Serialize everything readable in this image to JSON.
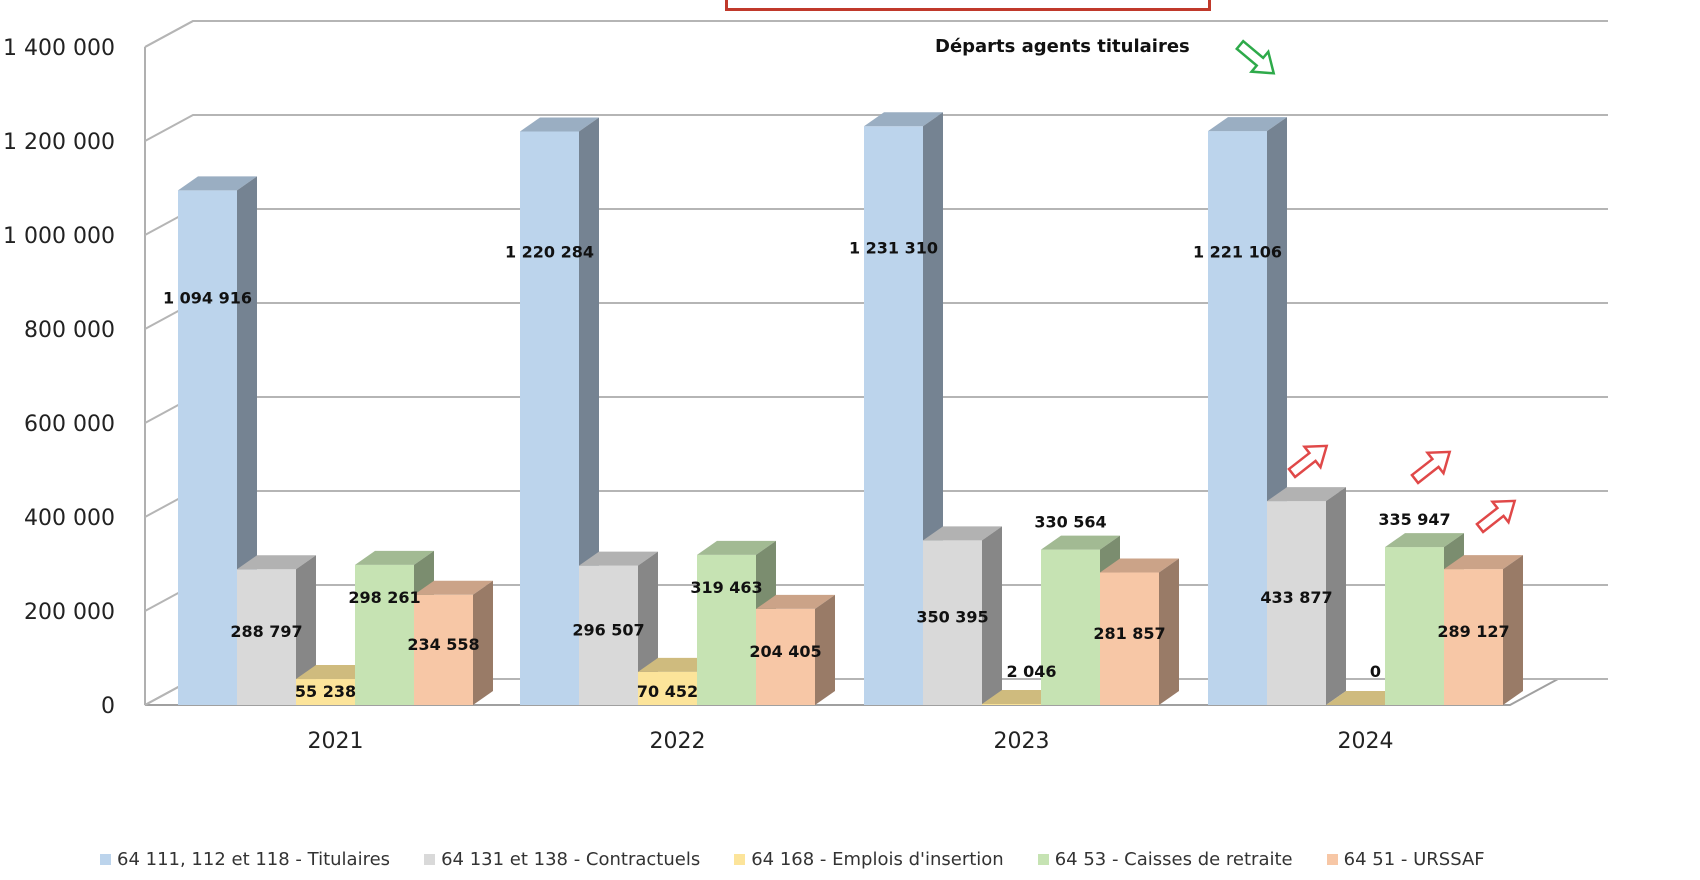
{
  "chart_data": {
    "type": "bar",
    "categories": [
      "2021",
      "2022",
      "2023",
      "2024"
    ],
    "ylim": [
      0,
      1400000
    ],
    "yticks": [
      0,
      200000,
      400000,
      600000,
      800000,
      1000000,
      1200000,
      1400000
    ],
    "ytick_labels": [
      "0",
      "200 000",
      "400 000",
      "600 000",
      "800 000",
      "1 000 000",
      "1 200 000",
      "1 400 000"
    ],
    "grid": true,
    "legend_position": "bottom",
    "style": "3d-clustered-column",
    "series": [
      {
        "name": "64 111, 112 et 118 - Titulaires",
        "color": "#bcd4ec",
        "values": [
          1094916,
          1220284,
          1231310,
          1221106
        ],
        "labels": [
          "1 094 916",
          "1 220 284",
          "1 231 310",
          "1 221 106"
        ]
      },
      {
        "name": "64 131 et 138 - Contractuels",
        "color": "#d9d9d9",
        "values": [
          288797,
          296507,
          350395,
          433877
        ],
        "labels": [
          "288 797",
          "296 507",
          "350 395",
          "433 877"
        ]
      },
      {
        "name": "64 168 - Emplois d'insertion",
        "color": "#fce49a",
        "values": [
          55238,
          70452,
          2046,
          0
        ],
        "labels": [
          "55 238",
          "70 452",
          "2 046",
          "0"
        ]
      },
      {
        "name": "64 53 - Caisses de retraite",
        "color": "#c6e3b3",
        "values": [
          298261,
          319463,
          330564,
          335947
        ],
        "labels": [
          "298 261",
          "319 463",
          "330 564",
          "335 947"
        ]
      },
      {
        "name": "64 51 - URSSAF",
        "color": "#f7c7a6",
        "values": [
          234558,
          204405,
          281857,
          289127
        ],
        "labels": [
          "234 558",
          "204 405",
          "281 857",
          "289 127"
        ]
      }
    ],
    "annotations": [
      {
        "text": "Départs agents titulaires",
        "arrow": "down-right",
        "arrow_color": "#2eaa4a"
      }
    ],
    "increase_arrows": {
      "color": "#e04848",
      "targets": [
        "2024 - 64 131 et 138 - Contractuels",
        "2024 - 64 53 - Caisses de retraite",
        "2024 - 64 51 - URSSAF"
      ]
    }
  }
}
